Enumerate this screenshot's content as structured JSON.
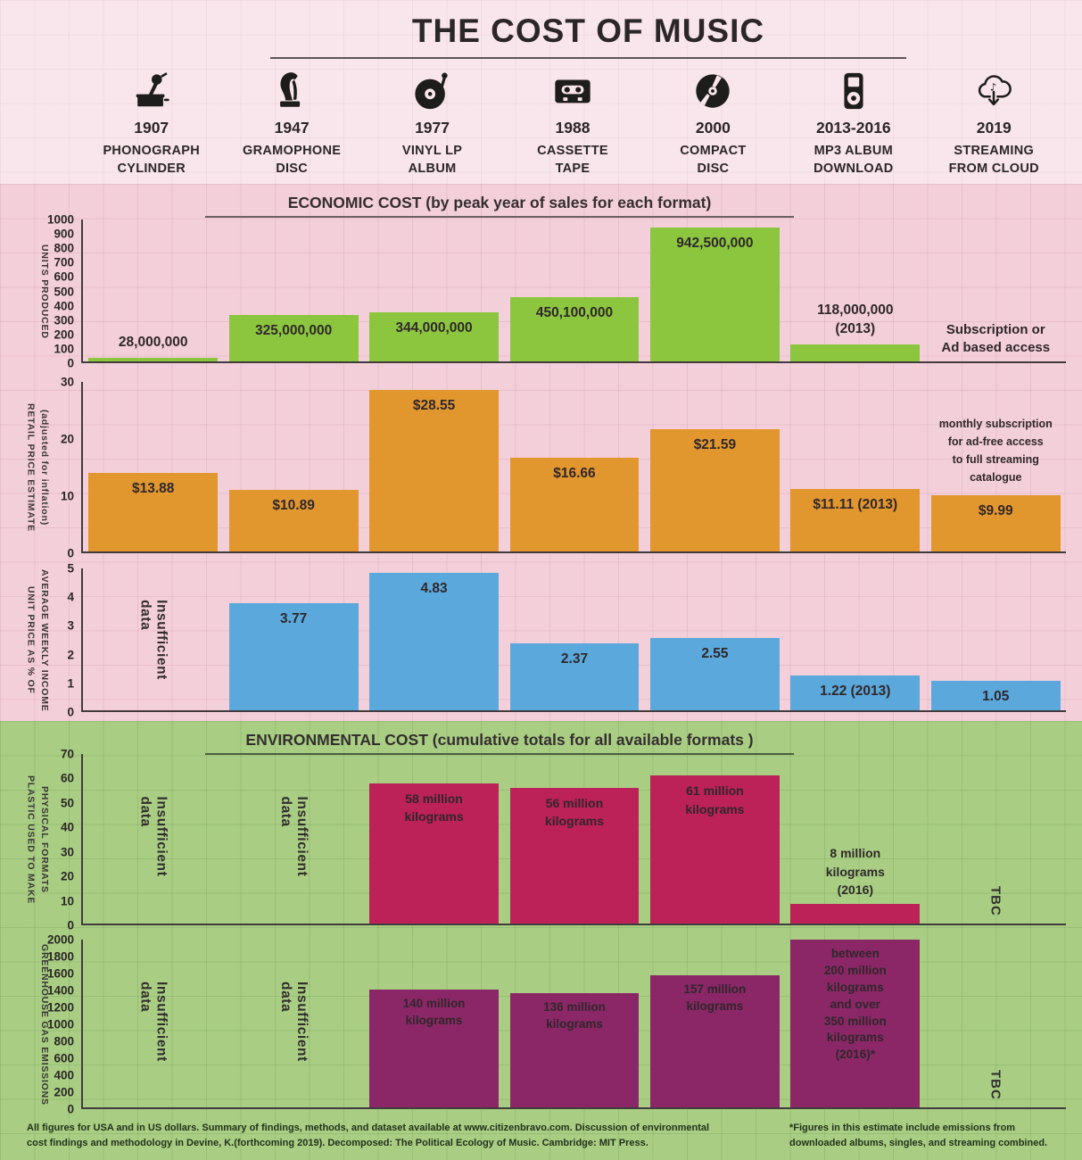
{
  "title": "THE COST OF MUSIC",
  "formats": [
    {
      "year": "1907",
      "name": "PHONOGRAPH\nCYLINDER",
      "icon": "phonograph-cylinder-icon"
    },
    {
      "year": "1947",
      "name": "GRAMOPHONE\nDISC",
      "icon": "gramophone-icon"
    },
    {
      "year": "1977",
      "name": "VINYL LP\nALBUM",
      "icon": "vinyl-record-icon"
    },
    {
      "year": "1988",
      "name": "CASSETTE\nTAPE",
      "icon": "cassette-tape-icon"
    },
    {
      "year": "2000",
      "name": "COMPACT\nDISC",
      "icon": "compact-disc-icon"
    },
    {
      "year": "2013-2016",
      "name": "MP3 ALBUM\nDOWNLOAD",
      "icon": "mp3-player-icon"
    },
    {
      "year": "2019",
      "name": "STREAMING\nFROM CLOUD",
      "icon": "cloud-download-icon"
    }
  ],
  "sections": {
    "economic": {
      "heading": "ECONOMIC COST (by peak year of sales for each format)"
    },
    "environmental": {
      "heading": "ENVIRONMENTAL COST (cumulative totals for all available formats )"
    }
  },
  "chart_data": [
    {
      "id": "units_produced",
      "type": "bar",
      "section": "economic",
      "axis_title_lines": [
        "UNITS PRODUCED"
      ],
      "ylim": [
        0,
        1000
      ],
      "ytick_step": 100,
      "bar_color": "#8cc63e",
      "categories": [
        "1907",
        "1947",
        "1977",
        "1988",
        "2000",
        "2013-2016",
        "2019"
      ],
      "columns": [
        {
          "value": 28,
          "label": "28,000,000",
          "label_pos": "above"
        },
        {
          "value": 325,
          "label": "325,000,000",
          "label_pos": "inside"
        },
        {
          "value": 344,
          "label": "344,000,000",
          "label_pos": "inside"
        },
        {
          "value": 450.1,
          "label": "450,100,000",
          "label_pos": "inside"
        },
        {
          "value": 942.5,
          "label": "942,500,000",
          "label_pos": "inside"
        },
        {
          "value": 118,
          "label": "118,000,000\n(2013)",
          "label_pos": "above"
        },
        {
          "text": "Subscription or\nAd based access",
          "text_style": "note-bottom"
        }
      ]
    },
    {
      "id": "retail_price",
      "type": "bar",
      "section": "economic",
      "axis_title_lines": [
        "RETAIL PRICE ESTIMATE",
        "(adjusted for inflation)"
      ],
      "ylim": [
        0,
        30
      ],
      "ytick_step": 10,
      "bar_color": "#e2962e",
      "categories": [
        "1907",
        "1947",
        "1977",
        "1988",
        "2000",
        "2013-2016",
        "2019"
      ],
      "columns": [
        {
          "value": 13.88,
          "label": "$13.88",
          "label_pos": "inside"
        },
        {
          "value": 10.89,
          "label": "$10.89",
          "label_pos": "inside"
        },
        {
          "value": 28.55,
          "label": "$28.55",
          "label_pos": "inside"
        },
        {
          "value": 16.66,
          "label": "$16.66",
          "label_pos": "inside"
        },
        {
          "value": 21.59,
          "label": "$21.59",
          "label_pos": "inside"
        },
        {
          "value": 11.11,
          "label": "$11.11 (2013)",
          "label_pos": "inside"
        },
        {
          "value": 9.99,
          "label": "$9.99",
          "label_pos": "inside",
          "note_above": "monthly subscription\nfor ad-free access\nto full streaming\ncatalogue"
        }
      ]
    },
    {
      "id": "income_pct",
      "type": "bar",
      "section": "economic",
      "axis_title_lines": [
        "UNIT PRICE AS % OF",
        "AVERAGE WEEKLY INCOME"
      ],
      "ylim": [
        0,
        5
      ],
      "ytick_step": 1,
      "bar_color": "#5ba8dc",
      "categories": [
        "1907",
        "1947",
        "1977",
        "1988",
        "2000",
        "2013-2016",
        "2019"
      ],
      "columns": [
        {
          "text": "Insufficient data",
          "text_style": "vertical"
        },
        {
          "value": 3.77,
          "label": "3.77",
          "label_pos": "inside"
        },
        {
          "value": 4.83,
          "label": "4.83",
          "label_pos": "inside"
        },
        {
          "value": 2.37,
          "label": "2.37",
          "label_pos": "inside"
        },
        {
          "value": 2.55,
          "label": "2.55",
          "label_pos": "inside"
        },
        {
          "value": 1.22,
          "label": "1.22 (2013)",
          "label_pos": "inside"
        },
        {
          "value": 1.05,
          "label": "1.05",
          "label_pos": "inside"
        }
      ]
    },
    {
      "id": "plastic",
      "type": "bar",
      "section": "environmental",
      "axis_title_lines": [
        "PLASTIC USED TO MAKE",
        "PHYSICAL FORMATS"
      ],
      "ylim": [
        0,
        70
      ],
      "ytick_step": 10,
      "bar_color": "#bc2157",
      "categories": [
        "1907",
        "1947",
        "1977",
        "1988",
        "2000",
        "2013-2016",
        "2019"
      ],
      "columns": [
        {
          "text": "Insufficient data",
          "text_style": "vertical"
        },
        {
          "text": "Insufficient data",
          "text_style": "vertical"
        },
        {
          "value": 58,
          "label": "58 million\nkilograms",
          "label_pos": "inside"
        },
        {
          "value": 56,
          "label": "56 million\nkilograms",
          "label_pos": "inside"
        },
        {
          "value": 61,
          "label": "61 million\nkilograms",
          "label_pos": "inside"
        },
        {
          "value": 8,
          "label": "8 million\nkilograms\n(2016)",
          "label_pos": "above"
        },
        {
          "text": "TBC",
          "text_style": "vertical-bottom"
        }
      ]
    },
    {
      "id": "ghg",
      "type": "bar",
      "section": "environmental",
      "axis_title_lines": [
        "GREENHOUSE GAS EMISSIONS"
      ],
      "ylim": [
        0,
        2000
      ],
      "ytick_step": 200,
      "bar_color": "#8b2767",
      "categories": [
        "1907",
        "1947",
        "1977",
        "1988",
        "2000",
        "2013-2016",
        "2019"
      ],
      "columns": [
        {
          "text": "Insufficient data",
          "text_style": "vertical"
        },
        {
          "text": "Insufficient data",
          "text_style": "vertical"
        },
        {
          "value": 1400,
          "label": "140 million\nkilograms",
          "label_pos": "inside"
        },
        {
          "value": 1360,
          "label": "136 million\nkilograms",
          "label_pos": "inside"
        },
        {
          "value": 1570,
          "label": "157 million\nkilograms",
          "label_pos": "inside"
        },
        {
          "value": 2000,
          "label": "between\n200 million\nkilograms\nand over\n350 million\nkilograms\n(2016)*",
          "label_pos": "inside"
        },
        {
          "text": "TBC",
          "text_style": "vertical-bottom"
        }
      ]
    }
  ],
  "footer": {
    "left": "All figures for USA and in US dollars. Summary of findings, methods, and dataset available at www.citizenbravo.com. Discussion of environmental\ncost findings and methodology in Devine, K.(forthcoming 2019). Decomposed: The Political Ecology of Music. Cambridge: MIT Press.",
    "right": "*Figures in this estimate include emissions from\ndownloaded albums, singles, and streaming combined."
  },
  "colors": {
    "band_top": "#f9e6ec",
    "band_economic": "#f3cfda",
    "band_environmental": "#a9ce83",
    "units_bar": "#8cc63e",
    "price_bar": "#e2962e",
    "income_bar": "#5ba8dc",
    "plastic_bar": "#bc2157",
    "ghg_bar": "#8b2767",
    "text_dark": "#2f2a2c"
  }
}
